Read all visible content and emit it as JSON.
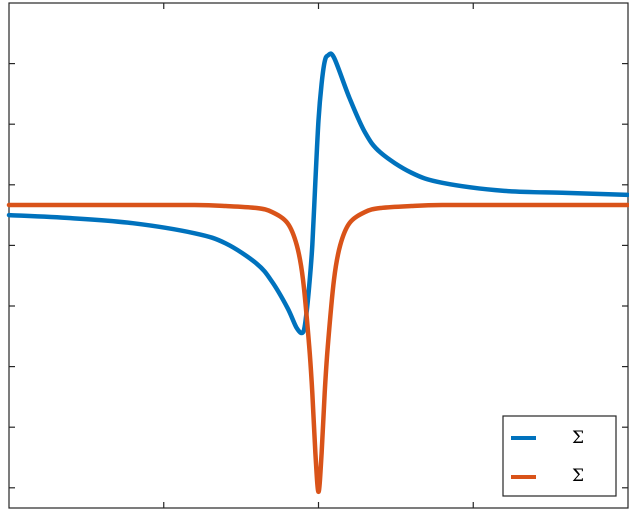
{
  "chart_data": {
    "type": "line",
    "title": "",
    "xlabel": "",
    "ylabel": "",
    "xlim": [
      -1,
      1
    ],
    "ylim": [
      -1.5,
      1.0
    ],
    "x_ticks": [
      -0.5,
      0,
      0.5
    ],
    "y_ticks": [
      -1.4,
      -1.1,
      -0.8,
      -0.5,
      -0.2,
      0.1,
      0.4,
      0.7
    ],
    "grid": false,
    "legend": {
      "placement": "bottom-right",
      "entries": [
        {
          "label": "Σ",
          "color": "#0072BD"
        },
        {
          "label": "Σ",
          "color": "#D95319"
        }
      ]
    },
    "series": [
      {
        "color": "#0072BD",
        "x": [
          -1.0,
          -0.8,
          -0.6,
          -0.4,
          -0.3,
          -0.2,
          -0.15,
          -0.1,
          -0.07,
          -0.05,
          -0.04,
          -0.03,
          -0.02,
          -0.01,
          0.0,
          0.01,
          0.02,
          0.03,
          0.05,
          0.1,
          0.15,
          0.2,
          0.3,
          0.4,
          0.6,
          0.8,
          1.0
        ],
        "y": [
          -0.05,
          -0.065,
          -0.09,
          -0.14,
          -0.19,
          -0.29,
          -0.38,
          -0.51,
          -0.61,
          -0.63,
          -0.55,
          -0.4,
          -0.2,
          0.12,
          0.42,
          0.6,
          0.71,
          0.74,
          0.73,
          0.53,
          0.36,
          0.26,
          0.16,
          0.11,
          0.07,
          0.06,
          0.05
        ]
      },
      {
        "color": "#D95319",
        "x": [
          -1.0,
          -0.6,
          -0.4,
          -0.3,
          -0.2,
          -0.15,
          -0.1,
          -0.07,
          -0.05,
          -0.03,
          -0.02,
          -0.01,
          0.0,
          0.01,
          0.02,
          0.03,
          0.05,
          0.07,
          0.1,
          0.15,
          0.2,
          0.3,
          0.4,
          0.6,
          1.0
        ],
        "y": [
          0.0,
          0.0,
          0.0,
          -0.005,
          -0.015,
          -0.035,
          -0.09,
          -0.2,
          -0.37,
          -0.7,
          -0.93,
          -1.23,
          -1.42,
          -1.23,
          -0.93,
          -0.7,
          -0.37,
          -0.2,
          -0.09,
          -0.035,
          -0.015,
          -0.005,
          0.0,
          0.0,
          0.0
        ]
      }
    ]
  }
}
